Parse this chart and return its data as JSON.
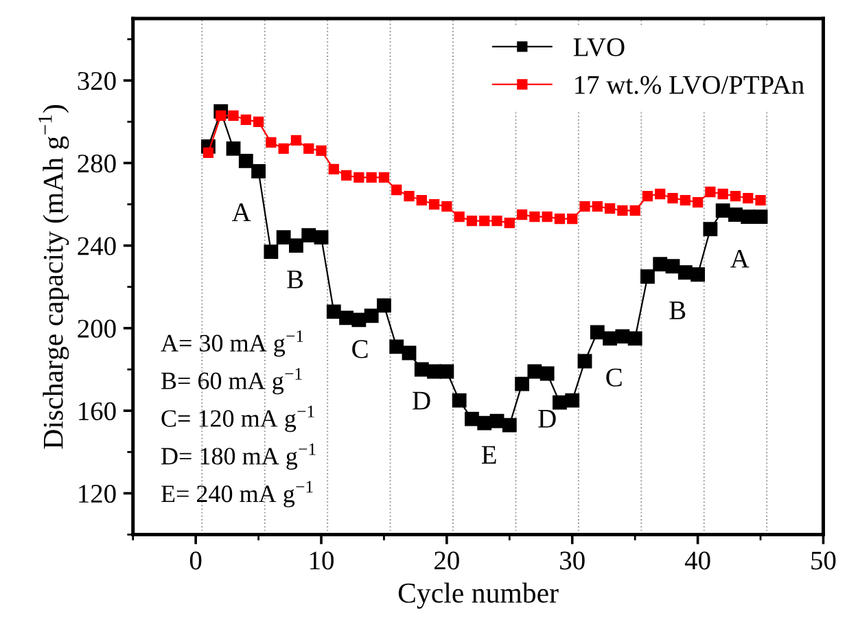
{
  "chart_data": {
    "type": "line",
    "xlabel": "Cycle number",
    "ylabel": "Discharge capacity (mAh g$^{−1}$)",
    "x": [
      1,
      2,
      3,
      4,
      5,
      6,
      7,
      8,
      9,
      10,
      11,
      12,
      13,
      14,
      15,
      16,
      17,
      18,
      19,
      20,
      21,
      22,
      23,
      24,
      25,
      26,
      27,
      28,
      29,
      30,
      31,
      32,
      33,
      34,
      35,
      36,
      37,
      38,
      39,
      40,
      41,
      42,
      43,
      44,
      45
    ],
    "series": [
      {
        "name": "LVO",
        "color": "#000000",
        "values": [
          288,
          305,
          287,
          281,
          276,
          237,
          244,
          240,
          245,
          244,
          208,
          205,
          204,
          206,
          211,
          191,
          188,
          180,
          179,
          179,
          165,
          156,
          154,
          155,
          153,
          173,
          179,
          178,
          164,
          165,
          184,
          198,
          195,
          196,
          195,
          225,
          231,
          230,
          227,
          226,
          248,
          257,
          255,
          254,
          254
        ]
      },
      {
        "name": "17 wt.% LVO/PTPAn",
        "color": "#ff0000",
        "values": [
          285,
          303,
          303,
          301,
          300,
          290,
          287,
          291,
          287,
          286,
          277,
          274,
          273,
          273,
          273,
          267,
          264,
          262,
          260,
          259,
          254,
          252,
          252,
          252,
          251,
          255,
          254,
          254,
          253,
          253,
          259,
          259,
          258,
          257,
          257,
          264,
          265,
          263,
          262,
          261,
          266,
          265,
          264,
          263,
          262
        ]
      }
    ],
    "marker": "square",
    "line_style": "solid",
    "xlim": [
      -5,
      50
    ],
    "ylim": [
      100,
      350
    ],
    "xticks": [
      0,
      10,
      20,
      30,
      40,
      50
    ],
    "yticks": [
      120,
      160,
      200,
      240,
      280,
      320
    ],
    "grid": false,
    "legend": "top right",
    "ref_lines": [
      {
        "axis": "x",
        "value": 0.5,
        "line_style": "dotted"
      },
      {
        "axis": "x",
        "value": 5.5,
        "line_style": "dotted"
      },
      {
        "axis": "x",
        "value": 10.5,
        "line_style": "dotted"
      },
      {
        "axis": "x",
        "value": 15.5,
        "line_style": "dotted"
      },
      {
        "axis": "x",
        "value": 20.5,
        "line_style": "dotted"
      },
      {
        "axis": "x",
        "value": 25.5,
        "line_style": "dotted"
      },
      {
        "axis": "x",
        "value": 30.5,
        "line_style": "dotted"
      },
      {
        "axis": "x",
        "value": 35.5,
        "line_style": "dotted"
      },
      {
        "axis": "x",
        "value": 40.5,
        "line_style": "dotted"
      },
      {
        "axis": "x",
        "value": 45.5,
        "line_style": "dotted"
      }
    ],
    "annotations": [
      "A",
      "B",
      "C",
      "D",
      "E",
      "D",
      "C",
      "B",
      "A",
      "A= 30 mA g$^{−1}$",
      "B= 60 mA g$^{−1}$",
      "C= 120 mA g$^{−1}$",
      "D= 180 mA g$^{−1}$",
      "E= 240 mA g$^{−1}$"
    ]
  }
}
